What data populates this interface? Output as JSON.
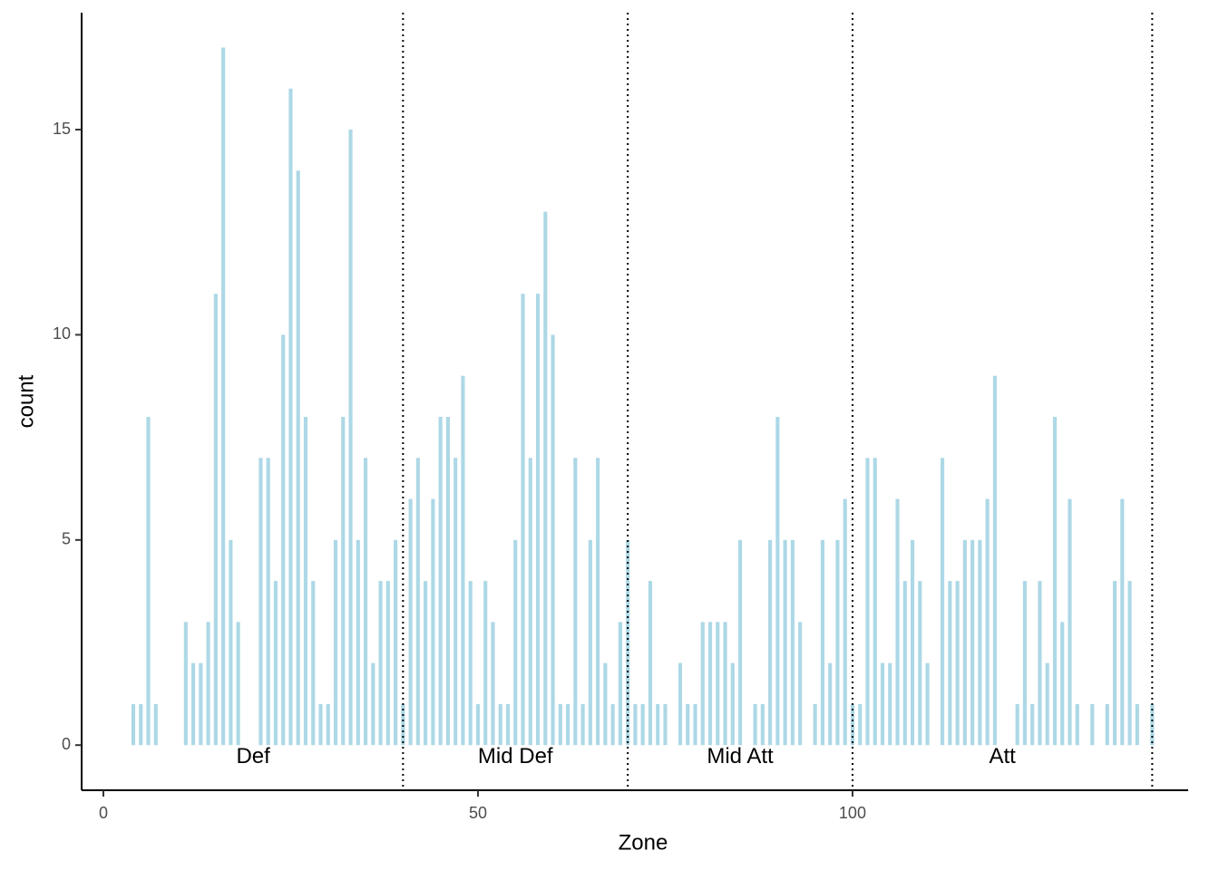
{
  "chart_data": {
    "type": "bar",
    "xlabel": "Zone",
    "ylabel": "count",
    "color": "#add8e6",
    "x": [
      4,
      5,
      6,
      7,
      11,
      12,
      13,
      14,
      15,
      16,
      17,
      18,
      21,
      22,
      23,
      24,
      25,
      26,
      27,
      28,
      29,
      30,
      31,
      32,
      33,
      34,
      35,
      36,
      37,
      38,
      39,
      40,
      41,
      42,
      43,
      44,
      45,
      46,
      47,
      48,
      49,
      50,
      51,
      52,
      53,
      54,
      55,
      56,
      57,
      58,
      59,
      60,
      61,
      62,
      63,
      64,
      65,
      66,
      67,
      68,
      69,
      70,
      71,
      72,
      73,
      74,
      75,
      77,
      78,
      79,
      80,
      81,
      82,
      83,
      84,
      85,
      87,
      88,
      89,
      90,
      91,
      92,
      93,
      95,
      96,
      97,
      98,
      99,
      100,
      101,
      102,
      103,
      104,
      105,
      106,
      107,
      108,
      109,
      110,
      112,
      113,
      114,
      115,
      116,
      117,
      118,
      119,
      122,
      123,
      124,
      125,
      126,
      127,
      128,
      129,
      130,
      132,
      134,
      135,
      136,
      137,
      138,
      140
    ],
    "values": [
      1,
      1,
      8,
      1,
      3,
      2,
      2,
      3,
      11,
      17,
      5,
      3,
      7,
      7,
      4,
      10,
      16,
      14,
      8,
      4,
      1,
      1,
      5,
      8,
      15,
      5,
      7,
      2,
      4,
      4,
      5,
      1,
      6,
      7,
      4,
      6,
      8,
      8,
      7,
      9,
      4,
      1,
      4,
      3,
      1,
      1,
      5,
      11,
      7,
      11,
      13,
      10,
      1,
      1,
      7,
      1,
      5,
      7,
      2,
      1,
      3,
      5,
      1,
      1,
      4,
      1,
      1,
      2,
      1,
      1,
      3,
      3,
      3,
      3,
      2,
      5,
      1,
      1,
      5,
      8,
      5,
      5,
      3,
      1,
      5,
      2,
      5,
      6,
      1,
      1,
      7,
      7,
      2,
      2,
      6,
      4,
      5,
      4,
      2,
      7,
      4,
      4,
      5,
      5,
      5,
      6,
      9,
      1,
      4,
      1,
      4,
      2,
      8,
      3,
      6,
      1,
      1,
      1,
      4,
      6,
      4,
      1,
      1
    ],
    "xlim": [
      -2.9,
      144.8
    ],
    "ylim": [
      -1.1,
      17.85
    ],
    "xticks": [
      0,
      50,
      100
    ],
    "yticks": [
      0,
      5,
      10,
      15
    ],
    "vlines": [
      40,
      70,
      100,
      140
    ],
    "annotations": [
      {
        "text": "Def",
        "x": 20,
        "y": -0.3
      },
      {
        "text": "Mid Def",
        "x": 55,
        "y": -0.3
      },
      {
        "text": "Mid Att",
        "x": 85,
        "y": -0.3
      },
      {
        "text": "Att",
        "x": 120,
        "y": -0.3
      }
    ]
  }
}
